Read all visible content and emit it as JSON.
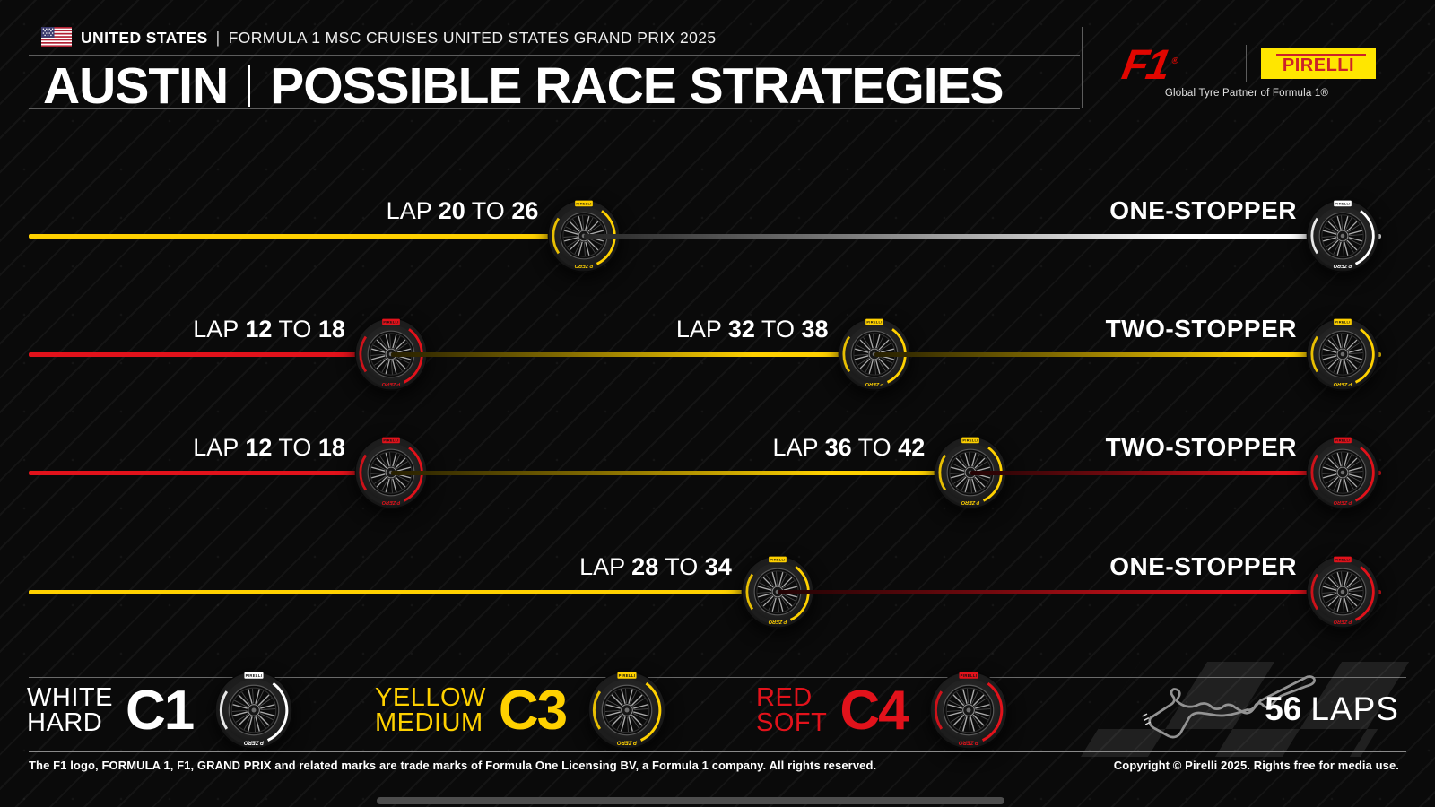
{
  "header": {
    "flag_icon": "us-flag",
    "country": "UNITED STATES",
    "separator": "|",
    "event_title": "FORMULA 1 MSC CRUISES UNITED STATES GRAND PRIX 2025",
    "title_city": "AUSTIN",
    "title_rest": "POSSIBLE RACE STRATEGIES",
    "f1_logo_text": "F1",
    "f1_reg": "®",
    "pirelli_logo_text": "PIRELLI",
    "partner_tagline": "Global Tyre Partner of Formula 1®"
  },
  "colors": {
    "background": "#0a0a0a",
    "hard": "#ffffff",
    "medium": "#ffd100",
    "soft": "#e2121b",
    "f1_red": "#e10600",
    "pirelli_yellow": "#ffe600",
    "pirelli_red": "#cc2229",
    "line_gray": "#5c5c5c"
  },
  "labels": {
    "lap_word": "LAP",
    "to_word": "TO"
  },
  "tyre_brand": {
    "band_text": "PIRELLI",
    "sidewall_text": "P ZERO"
  },
  "chart_data": {
    "type": "bar",
    "subtype": "horizontal-stacked-strategy-timeline",
    "title": "AUSTIN | POSSIBLE RACE STRATEGIES",
    "xlabel": "lap",
    "x_range": [
      1,
      56
    ],
    "total_laps": 56,
    "grid": false,
    "strategies": [
      {
        "name": "ONE-STOPPER",
        "stints": [
          {
            "compound": "medium",
            "compound_code": "C3",
            "pit_from": 20,
            "pit_to": 26
          },
          {
            "compound": "hard",
            "compound_code": "C1"
          }
        ]
      },
      {
        "name": "TWO-STOPPER",
        "stints": [
          {
            "compound": "soft",
            "compound_code": "C4",
            "pit_from": 12,
            "pit_to": 18
          },
          {
            "compound": "medium",
            "compound_code": "C3",
            "pit_from": 32,
            "pit_to": 38
          },
          {
            "compound": "medium",
            "compound_code": "C3"
          }
        ]
      },
      {
        "name": "TWO-STOPPER",
        "stints": [
          {
            "compound": "soft",
            "compound_code": "C4",
            "pit_from": 12,
            "pit_to": 18
          },
          {
            "compound": "medium",
            "compound_code": "C3",
            "pit_from": 36,
            "pit_to": 42
          },
          {
            "compound": "soft",
            "compound_code": "C4"
          }
        ]
      },
      {
        "name": "ONE-STOPPER",
        "stints": [
          {
            "compound": "medium",
            "compound_code": "C3",
            "pit_from": 28,
            "pit_to": 34
          },
          {
            "compound": "soft",
            "compound_code": "C4"
          }
        ]
      }
    ]
  },
  "legend": [
    {
      "color_word": "WHITE",
      "compound_word": "HARD",
      "code": "C1",
      "compound": "hard"
    },
    {
      "color_word": "YELLOW",
      "compound_word": "MEDIUM",
      "code": "C3",
      "compound": "medium"
    },
    {
      "color_word": "RED",
      "compound_word": "SOFT",
      "code": "C4",
      "compound": "soft"
    }
  ],
  "race_info": {
    "laps": "56",
    "laps_word": "LAPS",
    "circuit_icon": "circuit-of-the-americas-map"
  },
  "footer": {
    "trademark": "The F1 logo, FORMULA 1, F1, GRAND PRIX and related marks are trade marks of Formula One Licensing BV, a Formula 1 company. All rights reserved.",
    "copyright": "Copyright © Pirelli 2025. Rights free for media use."
  }
}
